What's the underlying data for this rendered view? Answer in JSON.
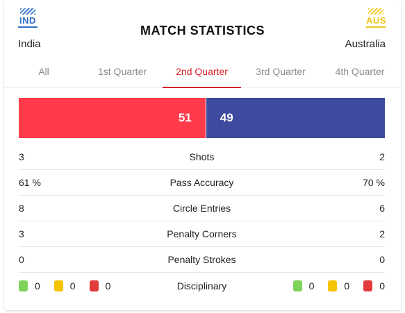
{
  "header": {
    "title": "MATCH STATISTICS",
    "home": {
      "abbr": "IND",
      "name": "India",
      "color": "#2f6fc4"
    },
    "away": {
      "abbr": "AUS",
      "name": "Australia",
      "color": "#f0c419"
    }
  },
  "tabs": [
    {
      "label": "All",
      "active": false
    },
    {
      "label": "1st Quarter",
      "active": false
    },
    {
      "label": "2nd Quarter",
      "active": true
    },
    {
      "label": "3rd Quarter",
      "active": false
    },
    {
      "label": "4th Quarter",
      "active": false
    }
  ],
  "possession": {
    "home": "51",
    "away": "49",
    "home_color": "#ff3a4a",
    "away_color": "#3d4a9e"
  },
  "stats": [
    {
      "home": "3",
      "label": "Shots",
      "away": "2"
    },
    {
      "home": "61 %",
      "label": "Pass Accuracy",
      "away": "70 %"
    },
    {
      "home": "8",
      "label": "Circle Entries",
      "away": "6"
    },
    {
      "home": "3",
      "label": "Penalty Corners",
      "away": "2"
    },
    {
      "home": "0",
      "label": "Penalty Strokes",
      "away": "0"
    }
  ],
  "disciplinary": {
    "label": "Disciplinary",
    "home": {
      "green": "0",
      "yellow": "0",
      "red": "0"
    },
    "away": {
      "green": "0",
      "yellow": "0",
      "red": "0"
    }
  },
  "accent": "#d8202c"
}
